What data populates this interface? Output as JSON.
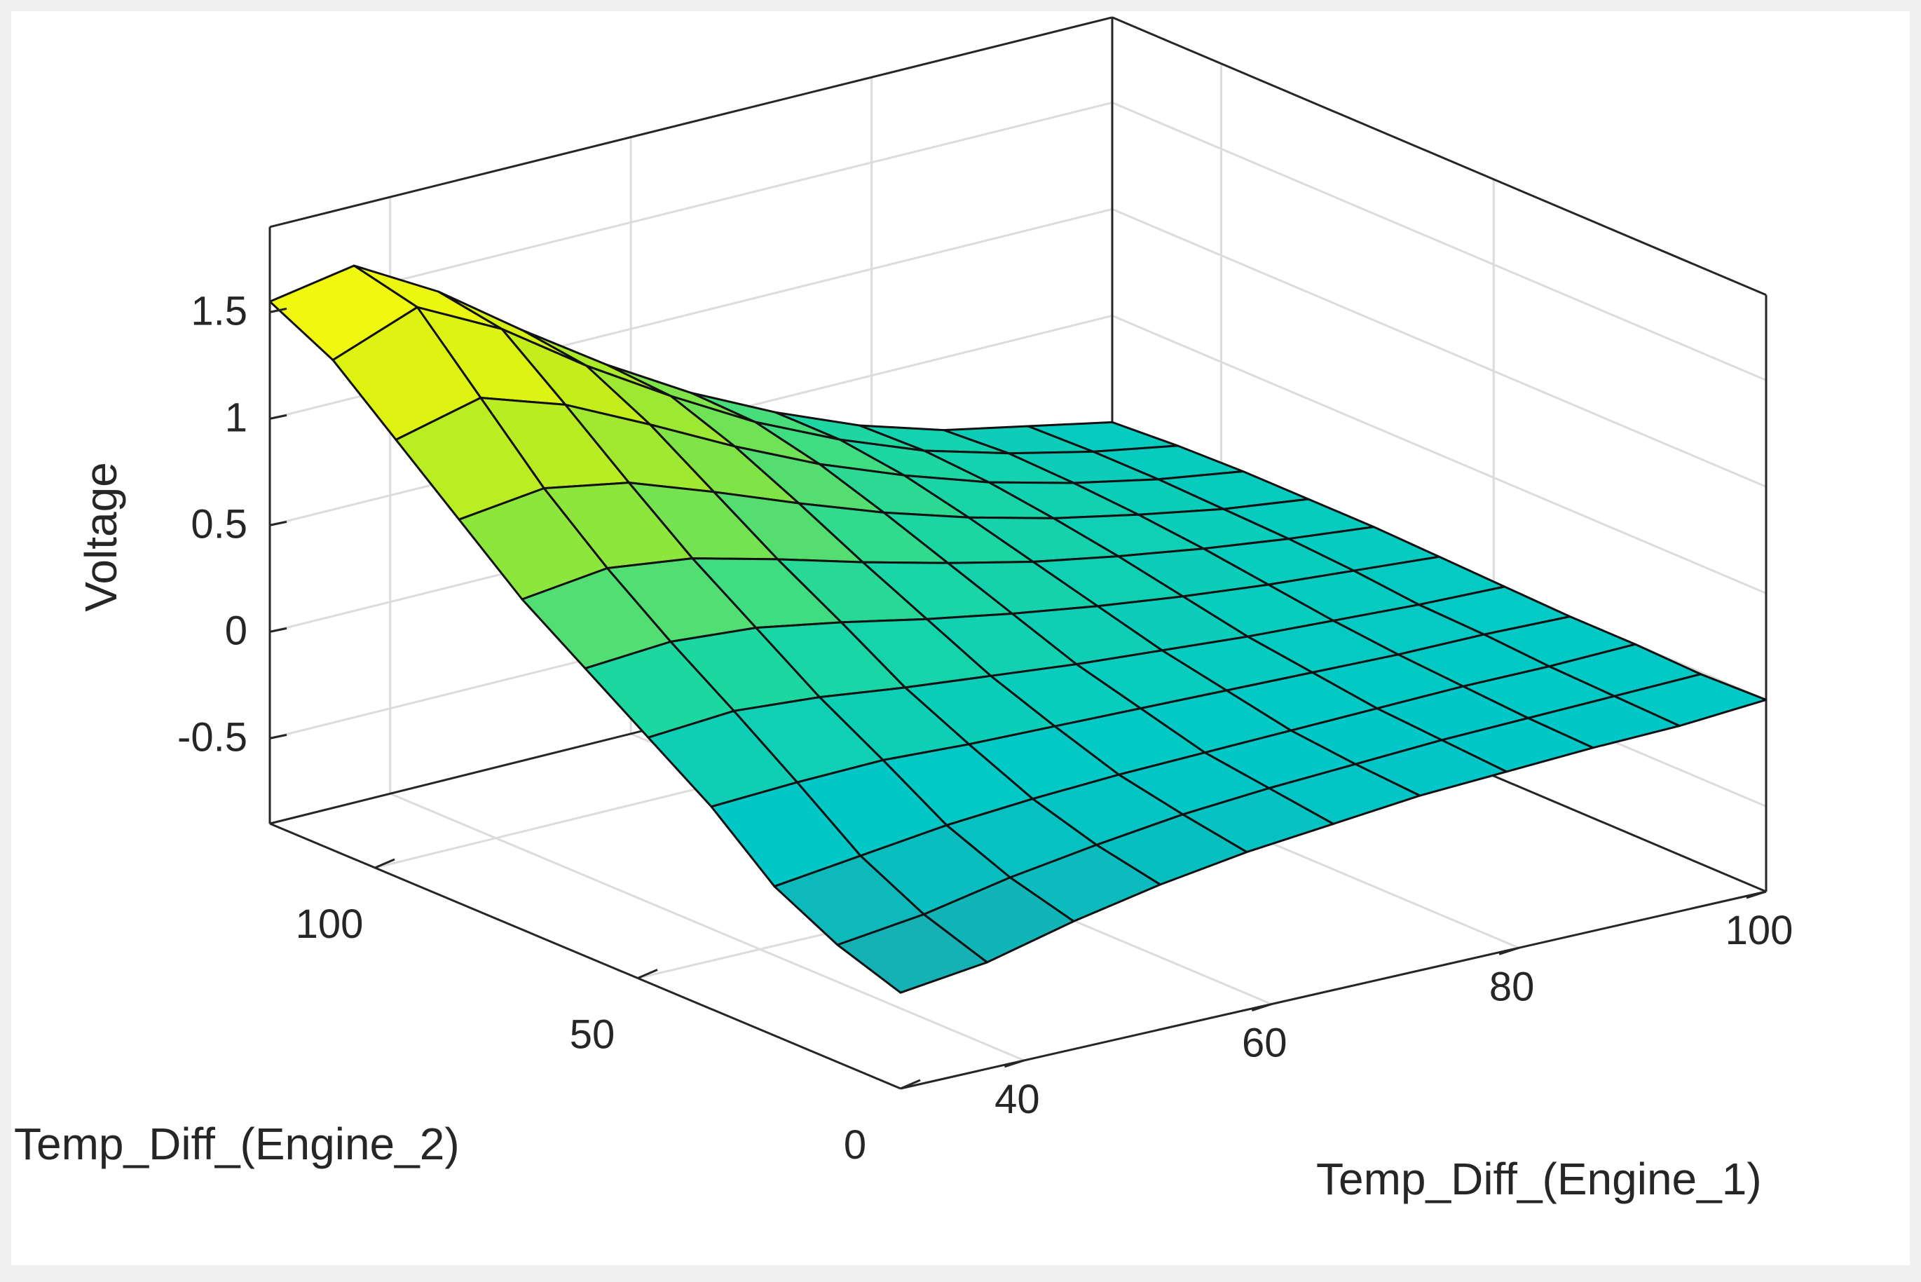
{
  "chart_data": {
    "type": "surface",
    "title": "",
    "xlabel": "Temp_Diff_(Engine_1)",
    "ylabel": "Temp_Diff_(Engine_2)",
    "zlabel": "Voltage",
    "xlim": [
      30,
      100
    ],
    "ylim": [
      0,
      120
    ],
    "zlim": [
      -0.9,
      1.9
    ],
    "x_ticks": [
      "40",
      "60",
      "80",
      "100"
    ],
    "y_ticks": [
      "0",
      "50",
      "100"
    ],
    "z_ticks": [
      "-0.5",
      "0",
      "0.5",
      "1",
      "1.5"
    ],
    "grid": true,
    "colormap": "parula",
    "x": [
      30,
      37,
      44,
      51,
      58,
      65,
      72,
      79,
      86,
      93,
      100
    ],
    "y": [
      0,
      12,
      24,
      36,
      48,
      60,
      72,
      84,
      96,
      108,
      120
    ],
    "z": [
      [
        -0.45,
        -0.4,
        -0.3,
        -0.22,
        -0.16,
        -0.12,
        -0.08,
        -0.06,
        -0.04,
        -0.03,
        0.0
      ],
      [
        -0.35,
        -0.3,
        -0.22,
        -0.16,
        -0.11,
        -0.08,
        -0.06,
        -0.04,
        -0.03,
        -0.02,
        -0.01
      ],
      [
        -0.2,
        -0.15,
        -0.1,
        -0.07,
        -0.05,
        -0.04,
        -0.03,
        -0.02,
        -0.01,
        -0.01,
        0.0
      ],
      [
        0.05,
        0.07,
        0.08,
        0.06,
        0.05,
        0.04,
        0.03,
        0.02,
        0.01,
        0.01,
        0.0
      ],
      [
        0.25,
        0.28,
        0.25,
        0.2,
        0.16,
        0.12,
        0.09,
        0.06,
        0.04,
        0.02,
        0.01
      ],
      [
        0.45,
        0.48,
        0.45,
        0.38,
        0.3,
        0.23,
        0.17,
        0.12,
        0.08,
        0.05,
        0.02
      ],
      [
        0.65,
        0.7,
        0.65,
        0.55,
        0.44,
        0.34,
        0.25,
        0.18,
        0.12,
        0.07,
        0.03
      ],
      [
        0.9,
        0.95,
        0.88,
        0.74,
        0.59,
        0.45,
        0.33,
        0.23,
        0.15,
        0.08,
        0.03
      ],
      [
        1.15,
        1.25,
        1.12,
        0.93,
        0.73,
        0.55,
        0.4,
        0.27,
        0.17,
        0.09,
        0.03
      ],
      [
        1.4,
        1.55,
        1.35,
        1.08,
        0.84,
        0.62,
        0.44,
        0.29,
        0.18,
        0.09,
        0.02
      ],
      [
        1.55,
        1.62,
        1.4,
        1.12,
        0.86,
        0.63,
        0.44,
        0.28,
        0.16,
        0.08,
        0.0
      ]
    ]
  }
}
